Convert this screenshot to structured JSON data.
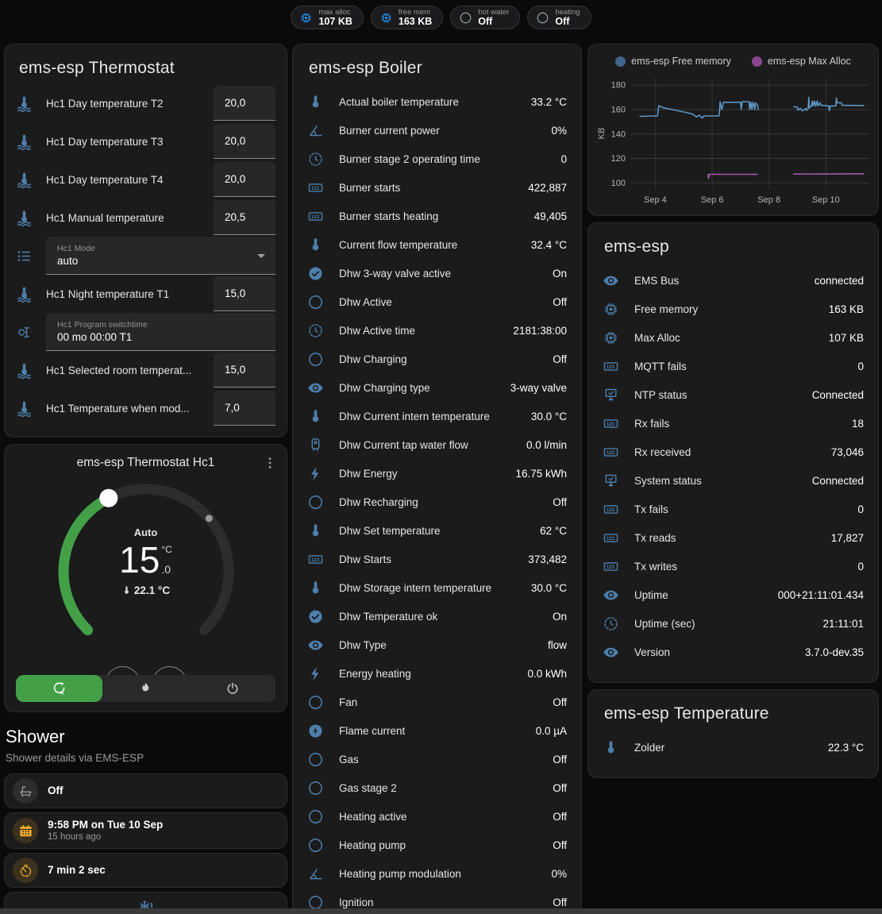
{
  "topbar": {
    "chips": [
      {
        "icon": "chip-icon",
        "label": "max alloc",
        "value": "107 KB"
      },
      {
        "icon": "chip-icon",
        "label": "free mem",
        "value": "163 KB"
      },
      {
        "icon": "circle-icon",
        "label": "hot water",
        "value": "Off"
      },
      {
        "icon": "circle-icon",
        "label": "heating",
        "value": "Off"
      }
    ]
  },
  "thermostat_card": {
    "title": "ems-esp Thermostat",
    "rows": [
      {
        "type": "number",
        "icon": "thermometer-water-icon",
        "label": "Hc1 Day temperature T2",
        "value": "20,0"
      },
      {
        "type": "number",
        "icon": "thermometer-water-icon",
        "label": "Hc1 Day temperature T3",
        "value": "20,0"
      },
      {
        "type": "number",
        "icon": "thermometer-water-icon",
        "label": "Hc1 Day temperature T4",
        "value": "20,0"
      },
      {
        "type": "number",
        "icon": "thermometer-water-icon",
        "label": "Hc1 Manual temperature",
        "value": "20,5"
      },
      {
        "type": "select",
        "icon": "list-icon",
        "label": "Hc1 Mode",
        "value": "auto"
      },
      {
        "type": "number",
        "icon": "thermometer-water-icon",
        "label": "Hc1 Night temperature T1",
        "value": "15,0"
      },
      {
        "type": "text",
        "icon": "valve-icon",
        "label": "Hc1 Program switchtime",
        "value": "00 mo 00:00 T1"
      },
      {
        "type": "number",
        "icon": "thermometer-water-icon",
        "label": "Hc1 Selected room temperat...",
        "value": "15,0"
      },
      {
        "type": "number",
        "icon": "thermometer-water-icon",
        "label": "Hc1 Temperature when mod...",
        "value": "7,0"
      }
    ]
  },
  "dial_card": {
    "title": "ems-esp Thermostat Hc1",
    "mode_label": "Auto",
    "target_int": "15",
    "target_frac": ".0",
    "unit": "°C",
    "current_label": "22.1 °C",
    "min": 5,
    "max": 30,
    "target": 15,
    "current_temp": 22.1,
    "minus_label": "−",
    "plus_label": "+",
    "active_color": "#43a047",
    "modes": [
      {
        "icon": "auto-mode-icon",
        "name": "auto",
        "active": true
      },
      {
        "icon": "flame-icon",
        "name": "heat",
        "active": false
      },
      {
        "icon": "power-icon",
        "name": "off",
        "active": false
      }
    ]
  },
  "shower": {
    "title": "Shower",
    "subtitle": "Shower details via EMS-ESP",
    "cards": [
      {
        "icon": "bathtub-icon",
        "value": "Off"
      },
      {
        "icon": "calendar-icon",
        "value": "9:58 PM on Tue 10 Sep",
        "secondary": "15 hours ago"
      },
      {
        "icon": "timer-icon",
        "value": "7 min 2 sec"
      },
      {
        "icon": "snowflake-alert-icon",
        "value": ""
      }
    ]
  },
  "boiler_card": {
    "title": "ems-esp Boiler",
    "rows": [
      {
        "icon": "thermometer-icon",
        "label": "Actual boiler temperature",
        "value": "33.2 °C"
      },
      {
        "icon": "angle-icon",
        "label": "Burner current power",
        "value": "0%"
      },
      {
        "icon": "clock-icon",
        "label": "Burner stage 2 operating time",
        "value": "0"
      },
      {
        "icon": "counter-icon",
        "label": "Burner starts",
        "value": "422,887"
      },
      {
        "icon": "counter-icon",
        "label": "Burner starts heating",
        "value": "49,405"
      },
      {
        "icon": "thermometer-icon",
        "label": "Current flow temperature",
        "value": "32.4 °C"
      },
      {
        "icon": "check-circle-icon",
        "label": "Dhw 3-way valve active",
        "value": "On"
      },
      {
        "icon": "circle-icon",
        "label": "Dhw Active",
        "value": "Off"
      },
      {
        "icon": "clock-icon",
        "label": "Dhw Active time",
        "value": "2181:38:00"
      },
      {
        "icon": "circle-icon",
        "label": "Dhw Charging",
        "value": "Off"
      },
      {
        "icon": "eye-icon",
        "label": "Dhw Charging type",
        "value": "3-way valve"
      },
      {
        "icon": "thermometer-icon",
        "label": "Dhw Current intern temperature",
        "value": "30.0 °C"
      },
      {
        "icon": "water-heater-icon",
        "label": "Dhw Current tap water flow",
        "value": "0.0 l/min"
      },
      {
        "icon": "flash-icon",
        "label": "Dhw Energy",
        "value": "16.75 kWh"
      },
      {
        "icon": "circle-icon",
        "label": "Dhw Recharging",
        "value": "Off"
      },
      {
        "icon": "thermometer-icon",
        "label": "Dhw Set temperature",
        "value": "62 °C"
      },
      {
        "icon": "counter-icon",
        "label": "Dhw Starts",
        "value": "373,482"
      },
      {
        "icon": "thermometer-icon",
        "label": "Dhw Storage intern temperature",
        "value": "30.0 °C"
      },
      {
        "icon": "check-circle-icon",
        "label": "Dhw Temperature ok",
        "value": "On"
      },
      {
        "icon": "eye-icon",
        "label": "Dhw Type",
        "value": "flow"
      },
      {
        "icon": "flash-icon",
        "label": "Energy heating",
        "value": "0.0 kWh"
      },
      {
        "icon": "circle-icon",
        "label": "Fan",
        "value": "Off"
      },
      {
        "icon": "flash-circle-icon",
        "label": "Flame current",
        "value": "0.0 µA"
      },
      {
        "icon": "circle-icon",
        "label": "Gas",
        "value": "Off"
      },
      {
        "icon": "circle-icon",
        "label": "Gas stage 2",
        "value": "Off"
      },
      {
        "icon": "circle-icon",
        "label": "Heating active",
        "value": "Off"
      },
      {
        "icon": "circle-icon",
        "label": "Heating pump",
        "value": "Off"
      },
      {
        "icon": "angle-icon",
        "label": "Heating pump modulation",
        "value": "0%"
      },
      {
        "icon": "circle-icon",
        "label": "Ignition",
        "value": "Off"
      }
    ]
  },
  "emsesp_card": {
    "title": "ems-esp",
    "rows": [
      {
        "icon": "eye-icon",
        "label": "EMS Bus",
        "value": "connected"
      },
      {
        "icon": "chip-icon",
        "label": "Free memory",
        "value": "163 KB"
      },
      {
        "icon": "chip-icon",
        "label": "Max Alloc",
        "value": "107 KB"
      },
      {
        "icon": "counter-icon",
        "label": "MQTT fails",
        "value": "0"
      },
      {
        "icon": "network-check-icon",
        "label": "NTP status",
        "value": "Connected"
      },
      {
        "icon": "counter-icon",
        "label": "Rx fails",
        "value": "18"
      },
      {
        "icon": "counter-icon",
        "label": "Rx received",
        "value": "73,046"
      },
      {
        "icon": "network-check-icon",
        "label": "System status",
        "value": "Connected"
      },
      {
        "icon": "counter-icon",
        "label": "Tx fails",
        "value": "0"
      },
      {
        "icon": "counter-icon",
        "label": "Tx reads",
        "value": "17,827"
      },
      {
        "icon": "counter-icon",
        "label": "Tx writes",
        "value": "0"
      },
      {
        "icon": "eye-icon",
        "label": "Uptime",
        "value": "000+21:11:01.434"
      },
      {
        "icon": "clock-icon",
        "label": "Uptime (sec)",
        "value": "21:11:01"
      },
      {
        "icon": "eye-icon",
        "label": "Version",
        "value": "3.7.0-dev.35"
      }
    ]
  },
  "temperature_card": {
    "title": "ems-esp Temperature",
    "rows": [
      {
        "icon": "thermometer-icon",
        "label": "Zolder",
        "value": "22.3 °C"
      }
    ]
  },
  "chart_data": {
    "type": "line",
    "ylabel": "KB",
    "y_ticks": [
      100,
      120,
      140,
      160,
      180
    ],
    "x_ticks": [
      {
        "day": 4,
        "label": "Sep 4"
      },
      {
        "day": 6,
        "label": "Sep 6"
      },
      {
        "day": 8,
        "label": "Sep 8"
      },
      {
        "day": 10,
        "label": "Sep 10"
      }
    ],
    "x_domain": [
      3.15,
      11.5
    ],
    "y_domain": [
      95,
      186
    ],
    "grid": true,
    "legend_position": "top",
    "series": [
      {
        "name": "ems-esp Free memory",
        "color": "#5c96c5",
        "dot_color": "#41658a",
        "segments": [
          [
            [
              3.45,
              154.5
            ],
            [
              4.08,
              154.8
            ],
            [
              4.12,
              163.2
            ],
            [
              4.3,
              161.5
            ],
            [
              4.8,
              159
            ],
            [
              5.3,
              156.5
            ],
            [
              5.45,
              154
            ],
            [
              5.55,
              155.5
            ],
            [
              5.65,
              153
            ],
            [
              5.7,
              154.8
            ],
            [
              6.1,
              154.8
            ],
            [
              6.25,
              155
            ],
            [
              6.28,
              166.5
            ],
            [
              6.34,
              160
            ],
            [
              6.4,
              166
            ],
            [
              7.0,
              166
            ],
            [
              7.02,
              160
            ],
            [
              7.06,
              166.5
            ],
            [
              7.3,
              166.5
            ],
            [
              7.32,
              160
            ],
            [
              7.36,
              166
            ],
            [
              7.4,
              160
            ],
            [
              7.44,
              166
            ],
            [
              7.5,
              160
            ],
            [
              7.52,
              165.5
            ],
            [
              7.6,
              163.5
            ],
            [
              7.62,
              159.5
            ]
          ],
          [
            [
              8.85,
              162.5
            ],
            [
              9.0,
              162
            ],
            [
              9.02,
              159.5
            ],
            [
              9.1,
              161
            ],
            [
              9.18,
              159
            ],
            [
              9.3,
              161
            ],
            [
              9.32,
              159.5
            ],
            [
              9.38,
              161
            ],
            [
              9.4,
              170
            ],
            [
              9.42,
              161.5
            ],
            [
              9.5,
              163
            ],
            [
              9.52,
              167
            ],
            [
              9.56,
              163
            ],
            [
              9.6,
              167
            ],
            [
              9.64,
              163
            ],
            [
              9.7,
              167
            ],
            [
              9.72,
              163
            ],
            [
              9.8,
              165.5
            ],
            [
              9.82,
              163.5
            ],
            [
              10.1,
              163
            ],
            [
              10.12,
              159
            ],
            [
              10.16,
              163
            ],
            [
              10.35,
              163
            ],
            [
              10.37,
              169.5
            ],
            [
              10.4,
              165.5
            ],
            [
              10.55,
              165.5
            ],
            [
              10.57,
              163.5
            ],
            [
              11.35,
              163.2
            ]
          ]
        ]
      },
      {
        "name": "ems-esp Max Alloc",
        "color": "#a55cab",
        "dot_color": "#8c4694",
        "segments": [
          [
            [
              5.85,
              107
            ],
            [
              5.87,
              103.5
            ],
            [
              5.9,
              107
            ],
            [
              7.6,
              107
            ]
          ],
          [
            [
              8.85,
              107.2
            ],
            [
              11.35,
              107.5
            ]
          ]
        ]
      }
    ]
  }
}
